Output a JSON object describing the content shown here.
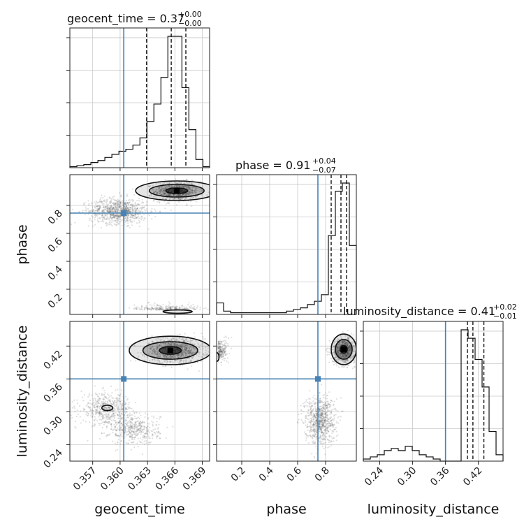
{
  "chart_data": {
    "type": "corner",
    "parameters": [
      "geocent_time",
      "phase",
      "luminosity_distance"
    ],
    "truths": {
      "geocent_time": 0.3604,
      "phase": 0.745,
      "luminosity_distance": 0.36
    },
    "ranges": {
      "geocent_time": [
        0.3545,
        0.3698
      ],
      "phase": [
        0.02,
        1.02
      ],
      "luminosity_distance": [
        0.21,
        0.465
      ]
    },
    "grid": true,
    "titles": [
      {
        "param": "geocent_time",
        "label": "geocent_time = 0.37",
        "plus": "+0.00",
        "minus": "−0.00"
      },
      {
        "param": "phase",
        "label": "phase = 0.91",
        "plus": "+0.04",
        "minus": "−0.07"
      },
      {
        "param": "luminosity_distance",
        "label": "luminosity_distance = 0.41",
        "plus": "+0.02",
        "minus": "−0.01"
      }
    ],
    "axis_labels": {
      "bottom": [
        "geocent_time",
        "phase",
        "luminosity_distance"
      ],
      "left": [
        "phase",
        "luminosity_distance"
      ]
    },
    "ticks": {
      "geocent_time": {
        "values": [
          0.357,
          0.36,
          0.363,
          0.366,
          0.369
        ],
        "labels": [
          "0.357",
          "0.360",
          "0.363",
          "0.366",
          "0.369"
        ]
      },
      "phase": {
        "values": [
          0.2,
          0.4,
          0.6,
          0.8
        ],
        "labels": [
          "0.2",
          "0.4",
          "0.6",
          "0.8"
        ]
      },
      "luminosity_distance": {
        "values": [
          0.24,
          0.3,
          0.36,
          0.42
        ],
        "labels": [
          "0.24",
          "0.30",
          "0.36",
          "0.42"
        ]
      }
    },
    "quantiles": {
      "geocent_time": [
        0.3629,
        0.3656,
        0.3672
      ],
      "phase": [
        0.84,
        0.91,
        0.95
      ],
      "luminosity_distance": [
        0.4,
        0.41,
        0.43
      ]
    },
    "histograms": {
      "geocent_time": {
        "edges": [
          0.3545,
          0.35527,
          0.35603,
          0.3568,
          0.35757,
          0.35833,
          0.3591,
          0.35987,
          0.36063,
          0.3614,
          0.36217,
          0.36293,
          0.3637,
          0.36447,
          0.36523,
          0.366,
          0.36677,
          0.36753,
          0.3683,
          0.36907,
          0.36983
        ],
        "counts": [
          1,
          2,
          3,
          5,
          7,
          10,
          13,
          16,
          18,
          22,
          29,
          45,
          62,
          88,
          128,
          128,
          78,
          37,
          8,
          1
        ]
      },
      "phase": {
        "edges": [
          0.02,
          0.07,
          0.12,
          0.17,
          0.22,
          0.27,
          0.32,
          0.37,
          0.42,
          0.47,
          0.52,
          0.57,
          0.62,
          0.67,
          0.72,
          0.77,
          0.82,
          0.87,
          0.92,
          0.97,
          1.02
        ],
        "counts": [
          7,
          2,
          1,
          1,
          1,
          1,
          1,
          1,
          1,
          1,
          2,
          3,
          4,
          6,
          8,
          12,
          48,
          75,
          80,
          42
        ]
      },
      "luminosity_distance": {
        "edges": [
          0.21,
          0.22275,
          0.2355,
          0.24825,
          0.261,
          0.27375,
          0.2865,
          0.29925,
          0.312,
          0.32475,
          0.3375,
          0.35025,
          0.363,
          0.37575,
          0.3885,
          0.40125,
          0.414,
          0.42675,
          0.4395,
          0.45225,
          0.465
        ],
        "counts": [
          1,
          2,
          3,
          5,
          6,
          5,
          7,
          5,
          3,
          2,
          1,
          0,
          0,
          0,
          62,
          58,
          48,
          35,
          14,
          3
        ]
      }
    }
  }
}
